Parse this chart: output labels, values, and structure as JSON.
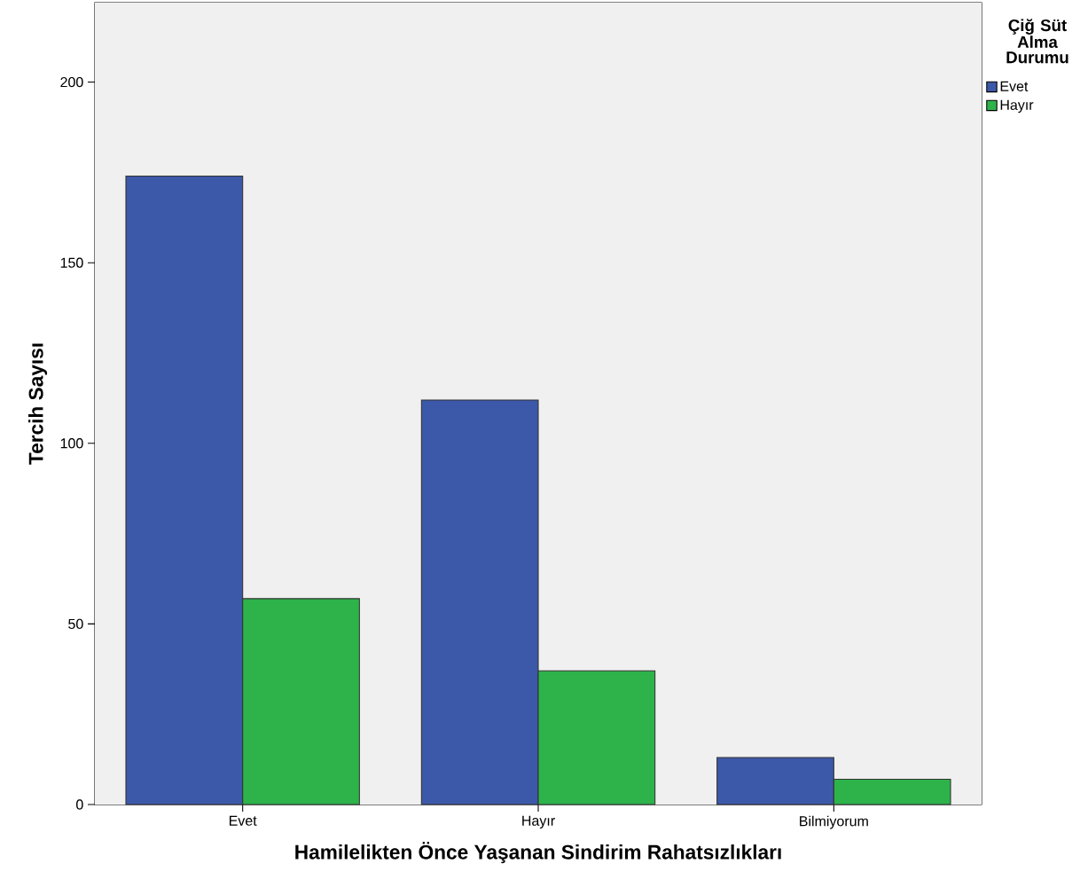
{
  "chart_data": {
    "type": "bar",
    "xlabel": "Hamilelikten Önce Yaşanan Sindirim Rahatsızlıkları",
    "ylabel": "Tercih Sayısı",
    "legend_title": "Çiğ Süt Alma Durumu",
    "categories": [
      "Evet",
      "Hayır",
      "Bilmiyorum"
    ],
    "series": [
      {
        "name": "Evet",
        "color": "#3c58a8",
        "values": [
          174,
          112,
          13
        ]
      },
      {
        "name": "Hayır",
        "color": "#2db34a",
        "values": [
          57,
          37,
          7
        ]
      }
    ],
    "ylim": [
      0,
      222
    ],
    "yticks": [
      0,
      50,
      100,
      150,
      200
    ],
    "grid": false,
    "legend": "top right"
  }
}
